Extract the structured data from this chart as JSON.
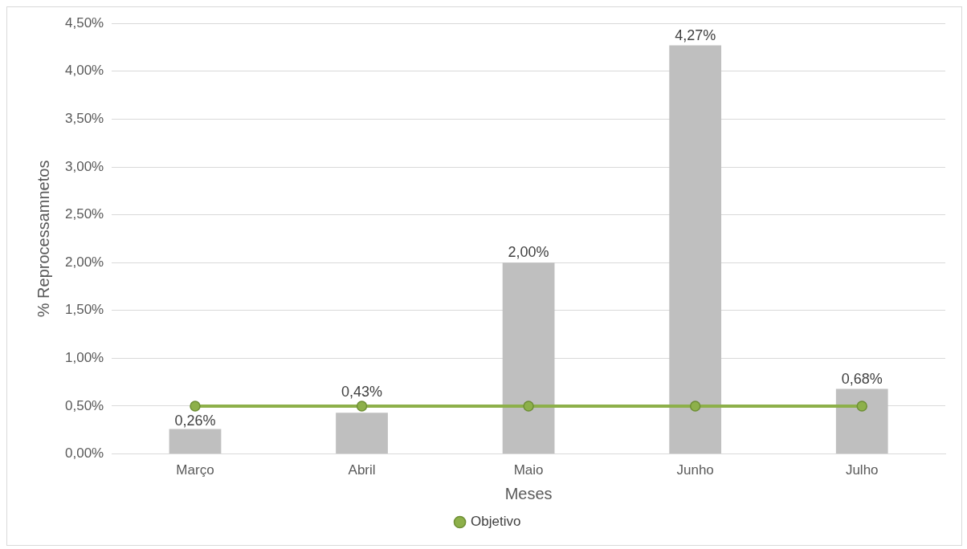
{
  "chart_data": {
    "type": "bar",
    "xlabel": "Meses",
    "ylabel": "% Reprocessamnetos",
    "categories": [
      "Março",
      "Abril",
      "Maio",
      "Junho",
      "Julho"
    ],
    "series": [
      {
        "type": "bar",
        "color": "#bfbfbf",
        "values": [
          0.26,
          0.43,
          2.0,
          4.27,
          0.68
        ],
        "value_labels": [
          "0,26%",
          "0,43%",
          "2,00%",
          "4,27%",
          "0,68%"
        ]
      },
      {
        "type": "line",
        "name": "Objetivo",
        "color": "#8db04a",
        "values": [
          0.5,
          0.5,
          0.5,
          0.5,
          0.5
        ],
        "marker": "circle",
        "line_style": "solid"
      }
    ],
    "ylim": [
      0,
      4.5
    ],
    "yticks": [
      {
        "value": 0,
        "label": "0,00%"
      },
      {
        "value": 0.5,
        "label": "0,50%"
      },
      {
        "value": 1,
        "label": "1,00%"
      },
      {
        "value": 1.5,
        "label": "1,50%"
      },
      {
        "value": 2,
        "label": "2,00%"
      },
      {
        "value": 2.5,
        "label": "2,50%"
      },
      {
        "value": 3,
        "label": "3,00%"
      },
      {
        "value": 3.5,
        "label": "3,50%"
      },
      {
        "value": 4,
        "label": "4,00%"
      },
      {
        "value": 4.5,
        "label": "4,50%"
      }
    ],
    "grid": "y",
    "legend": "bottom"
  }
}
